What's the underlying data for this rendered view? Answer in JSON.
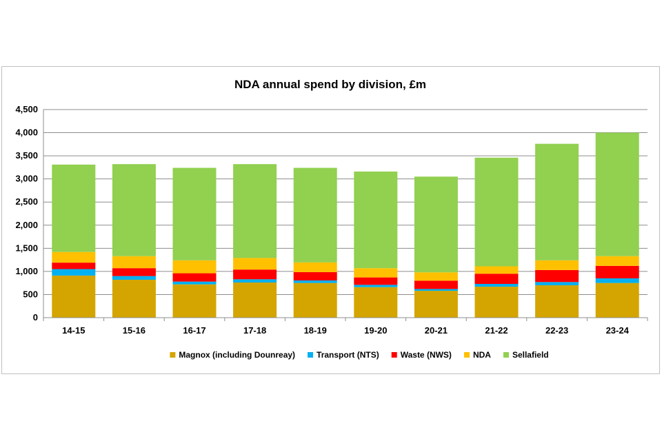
{
  "chart_data": {
    "type": "bar",
    "stacked": true,
    "title": "NDA annual spend by division, £m",
    "xlabel": "",
    "ylabel": "",
    "ylim": [
      0,
      4500
    ],
    "yticks": [
      0,
      500,
      1000,
      1500,
      2000,
      2500,
      3000,
      3500,
      4000,
      4500
    ],
    "ytick_labels": [
      "0",
      "500",
      "1,000",
      "1,500",
      "2,000",
      "2,500",
      "3,000",
      "3,500",
      "4,000",
      "4,500"
    ],
    "grid": true,
    "legend_position": "bottom",
    "categories": [
      "14-15",
      "15-16",
      "16-17",
      "17-18",
      "18-19",
      "19-20",
      "20-21",
      "21-22",
      "22-23",
      "23-24"
    ],
    "series": [
      {
        "name": "Magnox (including Dounreay)",
        "color": "#D4A500",
        "values": [
          910,
          820,
          720,
          760,
          750,
          660,
          580,
          670,
          700,
          750
        ]
      },
      {
        "name": "Transport (NTS)",
        "color": "#00B0F0",
        "values": [
          140,
          80,
          60,
          70,
          55,
          50,
          40,
          60,
          70,
          100
        ]
      },
      {
        "name": "Waste (NWS)",
        "color": "#FF0000",
        "values": [
          140,
          170,
          180,
          210,
          180,
          160,
          180,
          220,
          260,
          270
        ]
      },
      {
        "name": "NDA",
        "color": "#FFC000",
        "values": [
          230,
          260,
          280,
          250,
          210,
          200,
          180,
          160,
          210,
          210
        ]
      },
      {
        "name": "Sellafield",
        "color": "#92D050",
        "values": [
          1890,
          1990,
          2000,
          2030,
          2045,
          2090,
          2070,
          2350,
          2520,
          2670
        ]
      }
    ]
  }
}
